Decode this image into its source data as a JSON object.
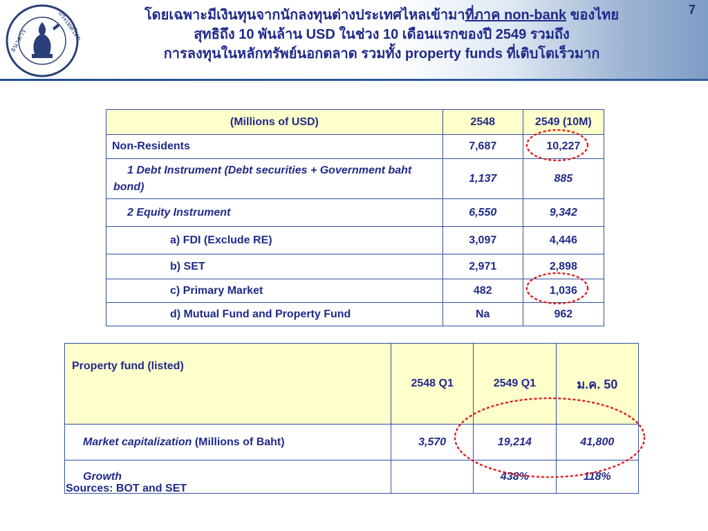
{
  "header": {
    "title_line1_prefix": "โดยเฉพาะมีเงินทุนจากนักลงทุนต่างประเทศไหลเข้ามา",
    "title_line1_underlined": "ที่ภาค non-bank",
    "title_line1_suffix": " ของไทย",
    "title_line2": "สุทธิถึง 10 พันล้าน USD ในช่วง 10 เดือนแรกของปี 2549 รวมถึง",
    "title_line3": "การลงทุนในหลักทรัพย์นอกตลาด รวมทั้ง property funds ที่เติบโตเร็วมาก",
    "page_number": "7",
    "logo_text_left": "ธนาคาร แห่ง",
    "logo_text_right": "ประเทศไทย"
  },
  "table1": {
    "headers": [
      "(Millions of USD)",
      "2548",
      "2549 (10M)"
    ],
    "rows": [
      {
        "label": "Non-Residents",
        "v1": "7,687",
        "v2": "10,227"
      },
      {
        "label": "1  Debt Instrument (Debt securities + Government baht bond)",
        "v1": "1,137",
        "v2": "885"
      },
      {
        "label": "2  Equity Instrument",
        "v1": "6,550",
        "v2": "9,342"
      },
      {
        "label": "a)  FDI (Exclude RE)",
        "v1": "3,097",
        "v2": "4,446"
      },
      {
        "label": "b)  SET",
        "v1": "2,971",
        "v2": "2,898"
      },
      {
        "label": "c)  Primary Market",
        "v1": "482",
        "v2": "1,036"
      },
      {
        "label": "d)  Mutual Fund and Property Fund",
        "v1": "Na",
        "v2": "962"
      }
    ]
  },
  "table2": {
    "headers": [
      "Property fund (listed)",
      "2548 Q1",
      "2549 Q1",
      "ม.ค. 50"
    ],
    "rows": [
      {
        "label_italic": "Market capitalization",
        "label_rest": " (Millions of Baht)",
        "v1": "3,570",
        "v2": "19,214",
        "v3": "41,800"
      },
      {
        "label_italic": "Growth",
        "label_rest": "",
        "v1": "",
        "v2": "438%",
        "v3": "118%"
      }
    ]
  },
  "footer": {
    "sources": "Sources: BOT and SET"
  },
  "colors": {
    "text": "#1f2a8a",
    "header_fill": "#ffffcc",
    "border": "#2f4fa0",
    "highlight_ring": "#e02020"
  }
}
